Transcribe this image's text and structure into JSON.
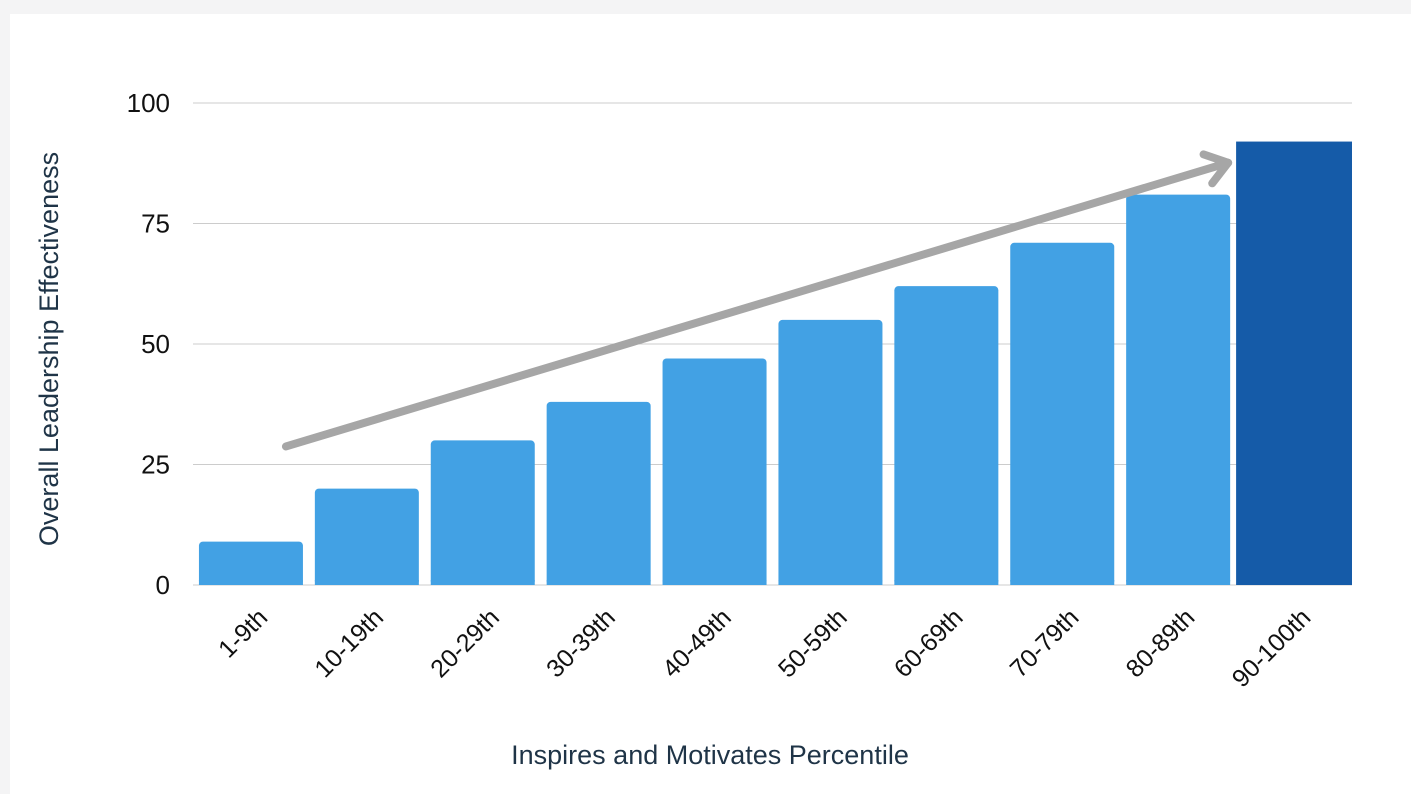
{
  "chart_data": {
    "type": "bar",
    "categories": [
      "1-9th",
      "10-19th",
      "20-29th",
      "30-39th",
      "40-49th",
      "50-59th",
      "60-69th",
      "70-79th",
      "80-89th",
      "90-100th"
    ],
    "values": [
      9,
      20,
      30,
      38,
      47,
      55,
      62,
      71,
      81,
      92
    ],
    "xlabel": "Inspires and Motivates Percentile",
    "ylabel": "Overall Leadership Effectiveness",
    "ylim": [
      0,
      100
    ],
    "yticks": [
      0,
      25,
      50,
      75,
      100
    ],
    "grid": true,
    "legend": "none",
    "highlight_category": "90-100th",
    "colors": {
      "bar": "#42a1e4",
      "highlight_bar": "#155ba8",
      "gridline": "#cccccc",
      "trend_arrow": "#a6a6a6"
    },
    "annotations": [
      {
        "type": "trend-arrow",
        "from": {
          "category": "1-9th",
          "value": 36
        },
        "to": {
          "category": "80-89th",
          "value": 93
        }
      }
    ]
  }
}
